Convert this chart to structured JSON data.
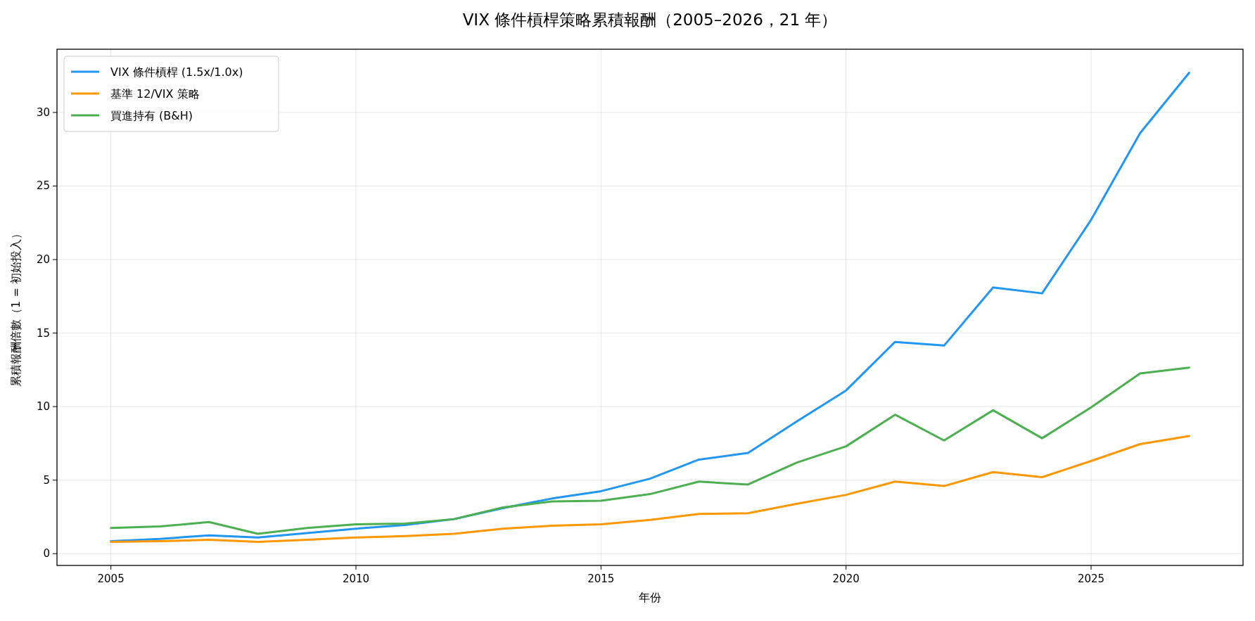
{
  "chart_data": {
    "type": "line",
    "title": "VIX 條件槓桿策略累積報酬（2005–2026，21 年）",
    "xlabel": "年份",
    "ylabel": "累積報酬倍數（1 = 初始投入）",
    "x": [
      2005,
      2006,
      2007,
      2008,
      2009,
      2010,
      2011,
      2012,
      2013,
      2014,
      2015,
      2016,
      2017,
      2018,
      2019,
      2020,
      2021,
      2022,
      2023,
      2024,
      2025,
      2026,
      2027
    ],
    "series": [
      {
        "name": "VIX 條件槓桿 (1.5x/1.0x)",
        "color": "#2196f3",
        "values": [
          0.85,
          1.0,
          1.25,
          1.1,
          1.4,
          1.7,
          1.95,
          2.35,
          3.1,
          3.75,
          4.25,
          5.1,
          6.4,
          6.85,
          9.0,
          11.1,
          14.4,
          14.15,
          18.1,
          17.7,
          22.7,
          28.6,
          32.7
        ]
      },
      {
        "name": "基準 12/VIX 策略",
        "color": "#ff9800",
        "values": [
          0.8,
          0.85,
          0.95,
          0.8,
          0.95,
          1.1,
          1.2,
          1.35,
          1.7,
          1.9,
          2.0,
          2.3,
          2.7,
          2.75,
          3.4,
          4.0,
          4.9,
          4.6,
          5.55,
          5.2,
          6.3,
          7.45,
          8.0
        ]
      },
      {
        "name": "買進持有 (B&H)",
        "color": "#4caf50",
        "values": [
          1.75,
          1.85,
          2.15,
          1.35,
          1.75,
          2.0,
          2.05,
          2.35,
          3.15,
          3.55,
          3.6,
          4.05,
          4.9,
          4.7,
          6.2,
          7.3,
          9.45,
          7.7,
          9.75,
          7.85,
          9.95,
          12.25,
          12.65
        ]
      }
    ],
    "xlim": [
      2003.9,
      2028.1
    ],
    "xticks": [
      2005,
      2010,
      2015,
      2020,
      2025
    ],
    "ylim": [
      -0.8,
      34.3
    ],
    "yticks": [
      0,
      5,
      10,
      15,
      20,
      25,
      30
    ],
    "grid": true,
    "legend": "top left",
    "line_style": "solid"
  }
}
